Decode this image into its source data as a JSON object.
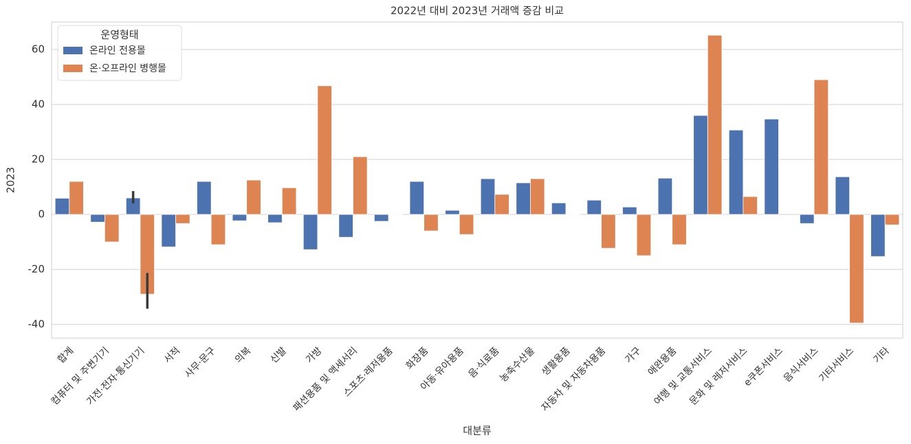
{
  "chart_data": {
    "type": "bar",
    "title": "2022년 대비 2023년 거래액 증감 비교",
    "x_label": "대분류",
    "y_label": "2023",
    "legend_title": "운영형태",
    "legend": "upper left",
    "grid": true,
    "categories": [
      "합계",
      "컴퓨터 및 주변기기",
      "가전·전자·통신기기",
      "서적",
      "사무·문구",
      "의복",
      "신발",
      "가방",
      "패션용품 및 액세서리",
      "스포츠·레저용품",
      "화장품",
      "아동·유아용품",
      "음·식료품",
      "농축수산물",
      "생활용품",
      "자동차 및 자동차용품",
      "가구",
      "애완용품",
      "여행 및 교통서비스",
      "문화 및 레저서비스",
      "e쿠폰서비스",
      "음식서비스",
      "기타서비스",
      "기타"
    ],
    "series": [
      {
        "name": "온라인 전용몰",
        "color": "#4c72b0",
        "values": [
          5.9,
          -2.8,
          6,
          -11.8,
          12,
          -2.3,
          -3,
          -12.8,
          -8.3,
          -2.5,
          12,
          1.5,
          13,
          11.5,
          4.2,
          5.2,
          2.7,
          13.2,
          36,
          30.7,
          34.7,
          -3.3,
          13.7,
          -15.3
        ],
        "ci": [
          null,
          null,
          [
            4,
            8.5
          ],
          null,
          null,
          null,
          null,
          null,
          null,
          null,
          null,
          null,
          null,
          null,
          null,
          null,
          null,
          null,
          null,
          null,
          null,
          null,
          null,
          null
        ]
      },
      {
        "name": "온·오프라인 병행몰",
        "color": "#dd8452",
        "values": [
          12,
          -10,
          -29,
          -3.3,
          -11,
          12.5,
          9.7,
          46.8,
          21,
          0.2,
          -6,
          -7.3,
          7.3,
          13,
          0.2,
          -12.3,
          -15,
          -11,
          65.2,
          6.5,
          0,
          49,
          -39.5,
          -3.8
        ],
        "ci": [
          null,
          null,
          [
            -34.3,
            -21.3
          ],
          null,
          null,
          null,
          null,
          null,
          null,
          null,
          null,
          null,
          null,
          null,
          null,
          null,
          null,
          null,
          null,
          null,
          null,
          null,
          null,
          null
        ]
      }
    ],
    "ylim": [
      -45,
      70
    ],
    "yticks": [
      -40,
      -20,
      0,
      20,
      40,
      60
    ]
  }
}
